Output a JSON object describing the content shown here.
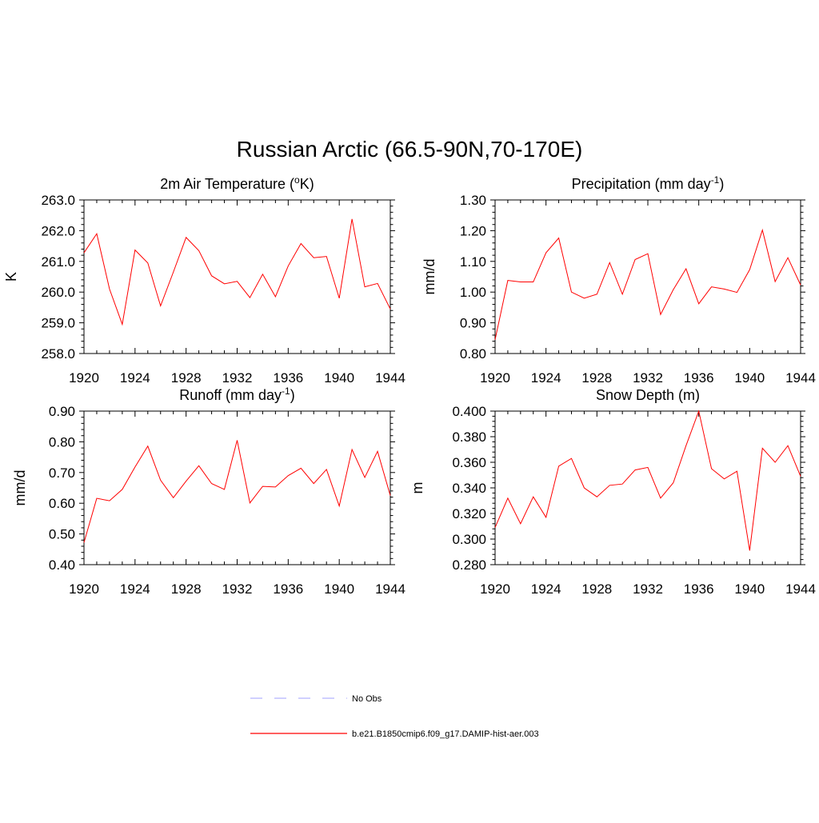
{
  "main_title": "Russian Arctic (66.5-90N,70-170E)",
  "legend": [
    {
      "label": "No Obs",
      "color": "#b3b3ff",
      "dash": true
    },
    {
      "label": "b.e21.B1850cmip6.f09_g17.DAMIP-hist-aer.003",
      "color": "#ff0000",
      "dash": false
    }
  ],
  "chart_data": [
    {
      "type": "line",
      "title": "2m Air Temperature (",
      "title_sup1": "o",
      "title_mid": "K)",
      "title_sup2": "",
      "title_end": "",
      "ylabel": "K",
      "xlim": [
        1920,
        1944
      ],
      "ylim": [
        258.0,
        263.0
      ],
      "xticks": [
        1920,
        1924,
        1928,
        1932,
        1936,
        1940,
        1944
      ],
      "yticks": [
        "258.0",
        "259.0",
        "260.0",
        "261.0",
        "262.0",
        "263.0"
      ],
      "x": [
        1920,
        1921,
        1922,
        1923,
        1924,
        1925,
        1926,
        1927,
        1928,
        1929,
        1930,
        1931,
        1932,
        1933,
        1934,
        1935,
        1936,
        1937,
        1938,
        1939,
        1940,
        1941,
        1942,
        1943,
        1944
      ],
      "series": [
        {
          "color": "#ff0000",
          "values": [
            261.28,
            261.9,
            260.1,
            258.95,
            261.37,
            260.95,
            259.55,
            260.65,
            261.78,
            261.35,
            260.53,
            260.27,
            260.35,
            259.82,
            260.58,
            259.85,
            260.85,
            261.58,
            261.12,
            261.16,
            259.8,
            262.38,
            260.17,
            260.28,
            259.45
          ]
        }
      ]
    },
    {
      "type": "line",
      "title": "Precipitation (mm day",
      "title_sup1": "-1",
      "title_mid": ")",
      "title_sup2": "",
      "title_end": "",
      "ylabel": "mm/d",
      "xlim": [
        1920,
        1944
      ],
      "ylim": [
        0.8,
        1.3
      ],
      "xticks": [
        1920,
        1924,
        1928,
        1932,
        1936,
        1940,
        1944
      ],
      "yticks": [
        "0.80",
        "0.90",
        "1.00",
        "1.10",
        "1.20",
        "1.30"
      ],
      "x": [
        1920,
        1921,
        1922,
        1923,
        1924,
        1925,
        1926,
        1927,
        1928,
        1929,
        1930,
        1931,
        1932,
        1933,
        1934,
        1935,
        1936,
        1937,
        1938,
        1939,
        1940,
        1941,
        1942,
        1943,
        1944
      ],
      "series": [
        {
          "color": "#ff0000",
          "values": [
            0.845,
            1.038,
            1.033,
            1.033,
            1.128,
            1.176,
            1.0,
            0.98,
            0.993,
            1.096,
            0.993,
            1.106,
            1.125,
            0.927,
            1.008,
            1.076,
            0.962,
            1.017,
            1.01,
            0.999,
            1.073,
            1.202,
            1.034,
            1.112,
            1.023
          ]
        }
      ]
    },
    {
      "type": "line",
      "title": "Runoff (mm day",
      "title_sup1": "-1",
      "title_mid": ")",
      "title_sup2": "",
      "title_end": "",
      "ylabel": "mm/d",
      "xlim": [
        1920,
        1944
      ],
      "ylim": [
        0.4,
        0.9
      ],
      "xticks": [
        1920,
        1924,
        1928,
        1932,
        1936,
        1940,
        1944
      ],
      "yticks": [
        "0.40",
        "0.50",
        "0.60",
        "0.70",
        "0.80",
        "0.90"
      ],
      "x": [
        1920,
        1921,
        1922,
        1923,
        1924,
        1925,
        1926,
        1927,
        1928,
        1929,
        1930,
        1931,
        1932,
        1933,
        1934,
        1935,
        1936,
        1937,
        1938,
        1939,
        1940,
        1941,
        1942,
        1943,
        1944
      ],
      "series": [
        {
          "color": "#ff0000",
          "values": [
            0.472,
            0.616,
            0.608,
            0.645,
            0.718,
            0.786,
            0.675,
            0.618,
            0.672,
            0.722,
            0.664,
            0.645,
            0.805,
            0.601,
            0.655,
            0.653,
            0.69,
            0.714,
            0.664,
            0.71,
            0.591,
            0.775,
            0.684,
            0.769,
            0.625
          ]
        }
      ]
    },
    {
      "type": "line",
      "title": "Snow Depth (m)",
      "title_sup1": "",
      "title_mid": "",
      "title_sup2": "",
      "title_end": "",
      "ylabel": "m",
      "xlim": [
        1920,
        1944
      ],
      "ylim": [
        0.28,
        0.4
      ],
      "xticks": [
        1920,
        1924,
        1928,
        1932,
        1936,
        1940,
        1944
      ],
      "yticks": [
        "0.280",
        "0.300",
        "0.320",
        "0.340",
        "0.360",
        "0.380",
        "0.400"
      ],
      "x": [
        1920,
        1921,
        1922,
        1923,
        1924,
        1925,
        1926,
        1927,
        1928,
        1929,
        1930,
        1931,
        1932,
        1933,
        1934,
        1935,
        1936,
        1937,
        1938,
        1939,
        1940,
        1941,
        1942,
        1943,
        1944
      ],
      "series": [
        {
          "color": "#ff0000",
          "values": [
            0.309,
            0.332,
            0.312,
            0.333,
            0.317,
            0.357,
            0.363,
            0.34,
            0.333,
            0.342,
            0.343,
            0.354,
            0.356,
            0.332,
            0.344,
            0.373,
            0.4,
            0.355,
            0.347,
            0.353,
            0.291,
            0.371,
            0.36,
            0.373,
            0.349
          ]
        }
      ]
    }
  ]
}
